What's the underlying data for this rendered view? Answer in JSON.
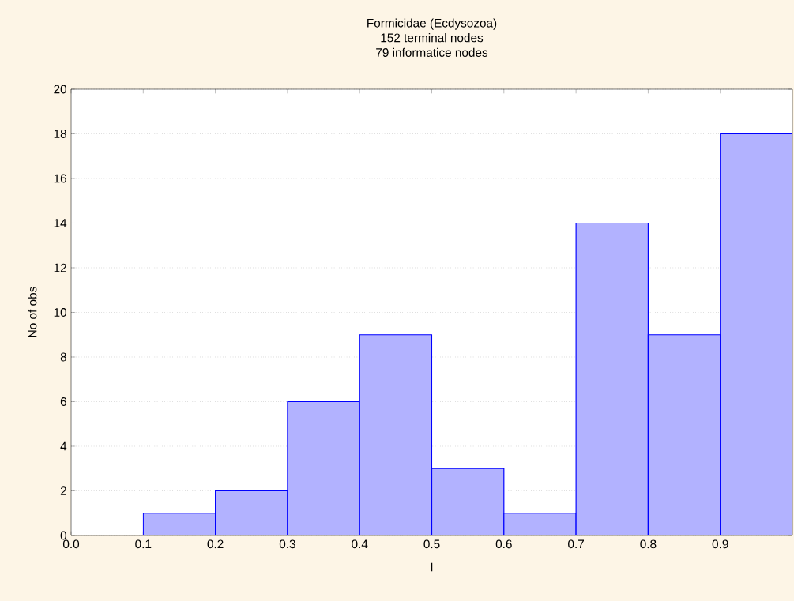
{
  "chart_data": {
    "type": "histogram",
    "title": "Formicidae (Ecdysozoa)",
    "subtitle": "152 terminal nodes",
    "annotations": [
      "79 informatice nodes"
    ],
    "xlabel": "I",
    "ylabel": "No of obs",
    "bins": [
      0.0,
      0.1,
      0.2,
      0.3,
      0.4,
      0.5,
      0.6,
      0.7,
      0.8,
      0.9,
      1.0
    ],
    "values": [
      0,
      1,
      2,
      6,
      9,
      3,
      1,
      14,
      9,
      18
    ],
    "color": "#0000ff",
    "xlim": [
      0.0,
      1.0
    ],
    "xticks": [
      {
        "value": 0.0,
        "label": "0.0"
      },
      0.1,
      0.2,
      0.3,
      0.4,
      0.5,
      0.6,
      0.7,
      0.8,
      0.9
    ],
    "ylim": [
      0,
      20
    ],
    "yticks": [
      0,
      2,
      4,
      6,
      8,
      10,
      12,
      14,
      16,
      18,
      20
    ],
    "grid": "y"
  }
}
